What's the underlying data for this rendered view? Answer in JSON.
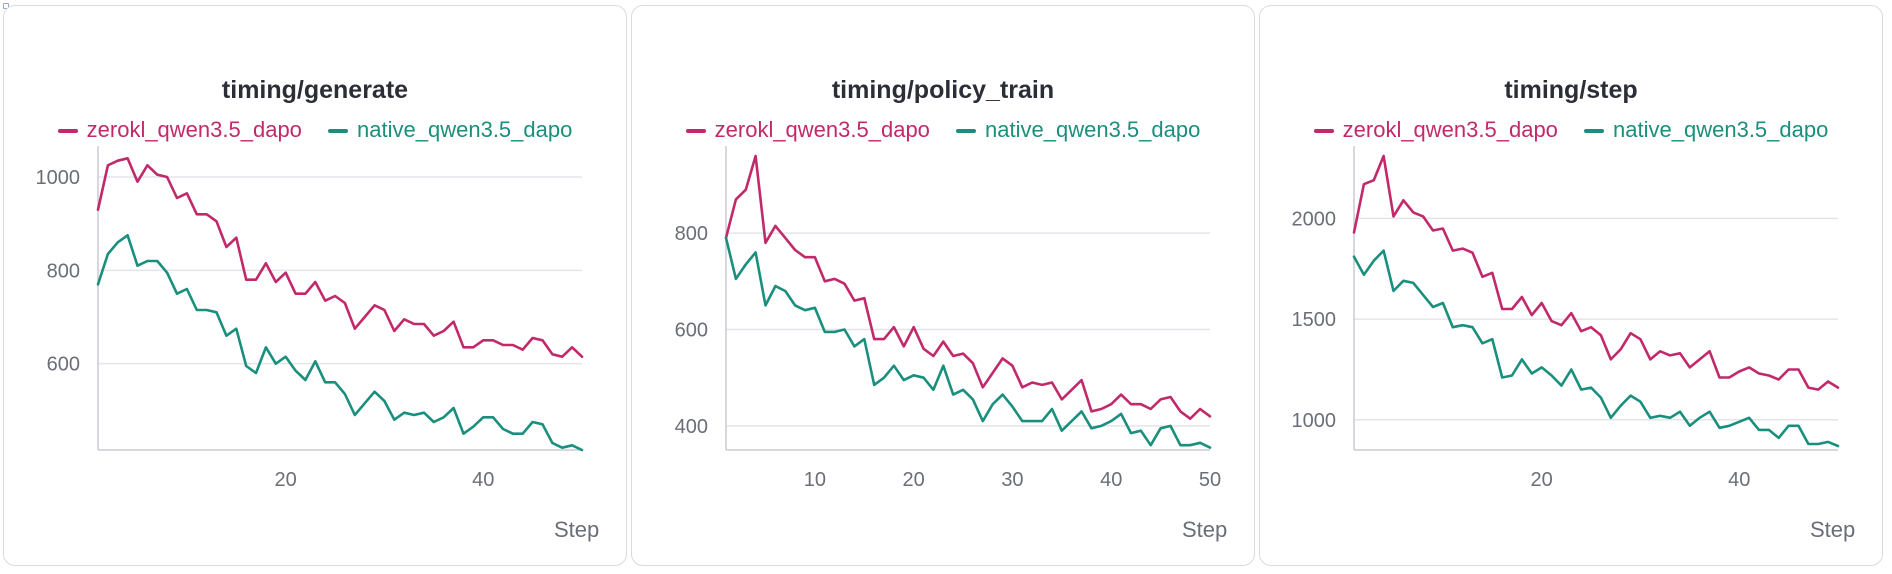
{
  "colors": {
    "zerokl": "#c2296b",
    "native": "#1a8f7d",
    "grid": "#e3e5ea",
    "axis": "#c9ccd3"
  },
  "chart_data": [
    {
      "type": "line",
      "title": "timing/generate",
      "xlabel": "Step",
      "xlim": [
        1,
        50
      ],
      "ylim": [
        415,
        1045
      ],
      "xticks": [
        20,
        40
      ],
      "yticks": [
        600,
        800,
        1000
      ],
      "series": [
        {
          "name": "zerokl_qwen3.5_dapo",
          "color": "#c2296b",
          "values": [
            930,
            1025,
            1035,
            1040,
            990,
            1025,
            1005,
            1000,
            955,
            965,
            920,
            920,
            905,
            850,
            870,
            780,
            780,
            815,
            775,
            795,
            750,
            750,
            775,
            735,
            745,
            730,
            675,
            700,
            725,
            715,
            670,
            695,
            685,
            685,
            660,
            670,
            690,
            635,
            635,
            650,
            650,
            640,
            640,
            630,
            655,
            650,
            620,
            615,
            635,
            615
          ]
        },
        {
          "name": "native_qwen3.5_dapo",
          "color": "#1a8f7d",
          "values": [
            770,
            835,
            860,
            875,
            810,
            820,
            820,
            795,
            750,
            760,
            715,
            715,
            710,
            660,
            675,
            595,
            580,
            635,
            600,
            615,
            585,
            565,
            605,
            560,
            560,
            535,
            490,
            515,
            540,
            520,
            480,
            495,
            490,
            495,
            475,
            485,
            505,
            450,
            465,
            485,
            485,
            460,
            450,
            450,
            475,
            470,
            430,
            420,
            425,
            415
          ]
        }
      ]
    },
    {
      "type": "line",
      "title": "timing/policy_train",
      "xlabel": "Step",
      "xlim": [
        1,
        50
      ],
      "ylim": [
        350,
        960
      ],
      "xticks": [
        10,
        20,
        30,
        40,
        50
      ],
      "yticks": [
        400,
        600,
        800
      ],
      "series": [
        {
          "name": "zerokl_qwen3.5_dapo",
          "color": "#c2296b",
          "values": [
            790,
            870,
            890,
            960,
            780,
            815,
            790,
            765,
            750,
            750,
            700,
            705,
            695,
            660,
            665,
            580,
            580,
            605,
            565,
            605,
            560,
            545,
            575,
            545,
            550,
            530,
            480,
            510,
            540,
            525,
            480,
            490,
            485,
            490,
            455,
            475,
            495,
            430,
            435,
            445,
            465,
            445,
            445,
            435,
            455,
            460,
            430,
            415,
            435,
            420
          ]
        },
        {
          "name": "native_qwen3.5_dapo",
          "color": "#1a8f7d",
          "values": [
            790,
            705,
            735,
            760,
            650,
            690,
            680,
            650,
            640,
            645,
            595,
            595,
            600,
            565,
            580,
            485,
            500,
            525,
            495,
            505,
            500,
            475,
            525,
            465,
            475,
            455,
            410,
            445,
            465,
            440,
            410,
            410,
            410,
            435,
            390,
            410,
            430,
            395,
            400,
            410,
            425,
            385,
            390,
            360,
            395,
            400,
            360,
            360,
            365,
            355
          ]
        }
      ]
    },
    {
      "type": "line",
      "title": "timing/step",
      "xlabel": "Step",
      "xlim": [
        1,
        50
      ],
      "ylim": [
        850,
        2310
      ],
      "xticks": [
        20,
        40
      ],
      "yticks": [
        1000,
        1500,
        2000
      ],
      "series": [
        {
          "name": "zerokl_qwen3.5_dapo",
          "color": "#c2296b",
          "values": [
            1930,
            2170,
            2190,
            2310,
            2010,
            2090,
            2030,
            2010,
            1940,
            1950,
            1840,
            1850,
            1830,
            1710,
            1730,
            1550,
            1550,
            1610,
            1520,
            1580,
            1490,
            1470,
            1530,
            1440,
            1460,
            1420,
            1300,
            1350,
            1430,
            1400,
            1300,
            1340,
            1320,
            1330,
            1260,
            1300,
            1340,
            1210,
            1210,
            1240,
            1260,
            1230,
            1220,
            1200,
            1250,
            1250,
            1160,
            1150,
            1190,
            1160
          ]
        },
        {
          "name": "native_qwen3.5_dapo",
          "color": "#1a8f7d",
          "values": [
            1810,
            1720,
            1790,
            1840,
            1640,
            1690,
            1680,
            1620,
            1560,
            1580,
            1460,
            1470,
            1460,
            1380,
            1400,
            1210,
            1220,
            1300,
            1230,
            1260,
            1220,
            1170,
            1250,
            1150,
            1160,
            1110,
            1010,
            1070,
            1120,
            1090,
            1010,
            1020,
            1010,
            1040,
            970,
            1010,
            1040,
            960,
            970,
            990,
            1010,
            950,
            950,
            910,
            970,
            970,
            880,
            880,
            890,
            870
          ]
        }
      ]
    }
  ]
}
